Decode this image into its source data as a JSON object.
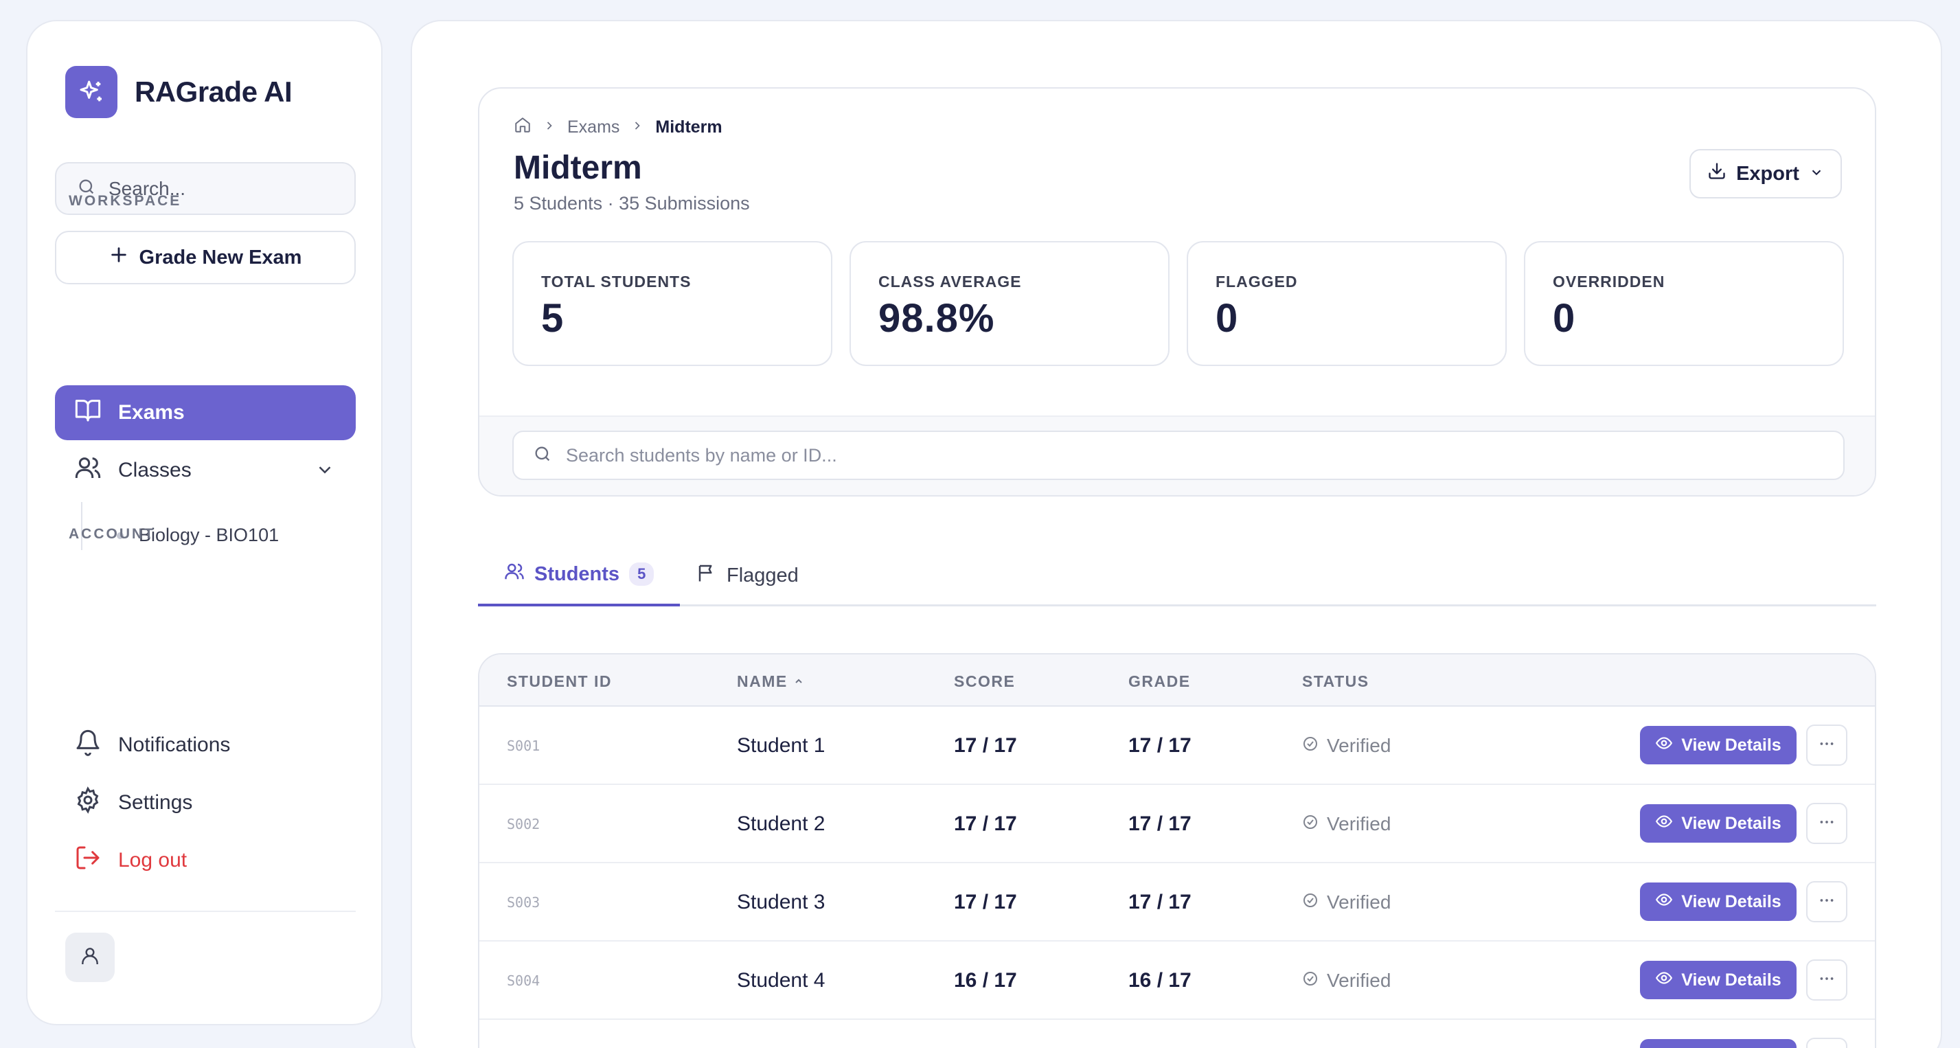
{
  "sidebar": {
    "brand": "RAGrade AI",
    "search_placeholder": "Search...",
    "new_exam_label": "Grade New Exam",
    "workspace_label": "WORKSPACE",
    "nav": {
      "exams": "Exams",
      "classes": "Classes"
    },
    "class_items": [
      "Biology - BIO101"
    ],
    "account_label": "ACCOUNT",
    "account": {
      "notifications": "Notifications",
      "settings": "Settings",
      "logout": "Log out"
    }
  },
  "breadcrumb": {
    "parent": "Exams",
    "current": "Midterm"
  },
  "header": {
    "title": "Midterm",
    "subtitle": "5 Students · 35 Submissions",
    "export_label": "Export"
  },
  "stats": [
    {
      "label": "TOTAL STUDENTS",
      "value": "5"
    },
    {
      "label": "CLASS AVERAGE",
      "value": "98.8%"
    },
    {
      "label": "FLAGGED",
      "value": "0"
    },
    {
      "label": "OVERRIDDEN",
      "value": "0"
    }
  ],
  "student_search_placeholder": "Search students by name or ID...",
  "tabs": {
    "students": "Students",
    "students_count": "5",
    "flagged": "Flagged"
  },
  "table": {
    "headers": {
      "id": "STUDENT ID",
      "name": "NAME",
      "score": "SCORE",
      "grade": "GRADE",
      "status": "STATUS"
    },
    "view_label": "View Details",
    "rows": [
      {
        "id": "S001",
        "name": "Student 1",
        "score": "17 / 17",
        "grade": "17 / 17",
        "status": "Verified"
      },
      {
        "id": "S002",
        "name": "Student 2",
        "score": "17 / 17",
        "grade": "17 / 17",
        "status": "Verified"
      },
      {
        "id": "S003",
        "name": "Student 3",
        "score": "17 / 17",
        "grade": "17 / 17",
        "status": "Verified"
      },
      {
        "id": "S004",
        "name": "Student 4",
        "score": "16 / 17",
        "grade": "16 / 17",
        "status": "Verified"
      }
    ]
  },
  "colors": {
    "accent": "#6b63cf",
    "accent_text": "#5b54c6",
    "danger": "#e0393e",
    "background": "#f1f4fb"
  }
}
